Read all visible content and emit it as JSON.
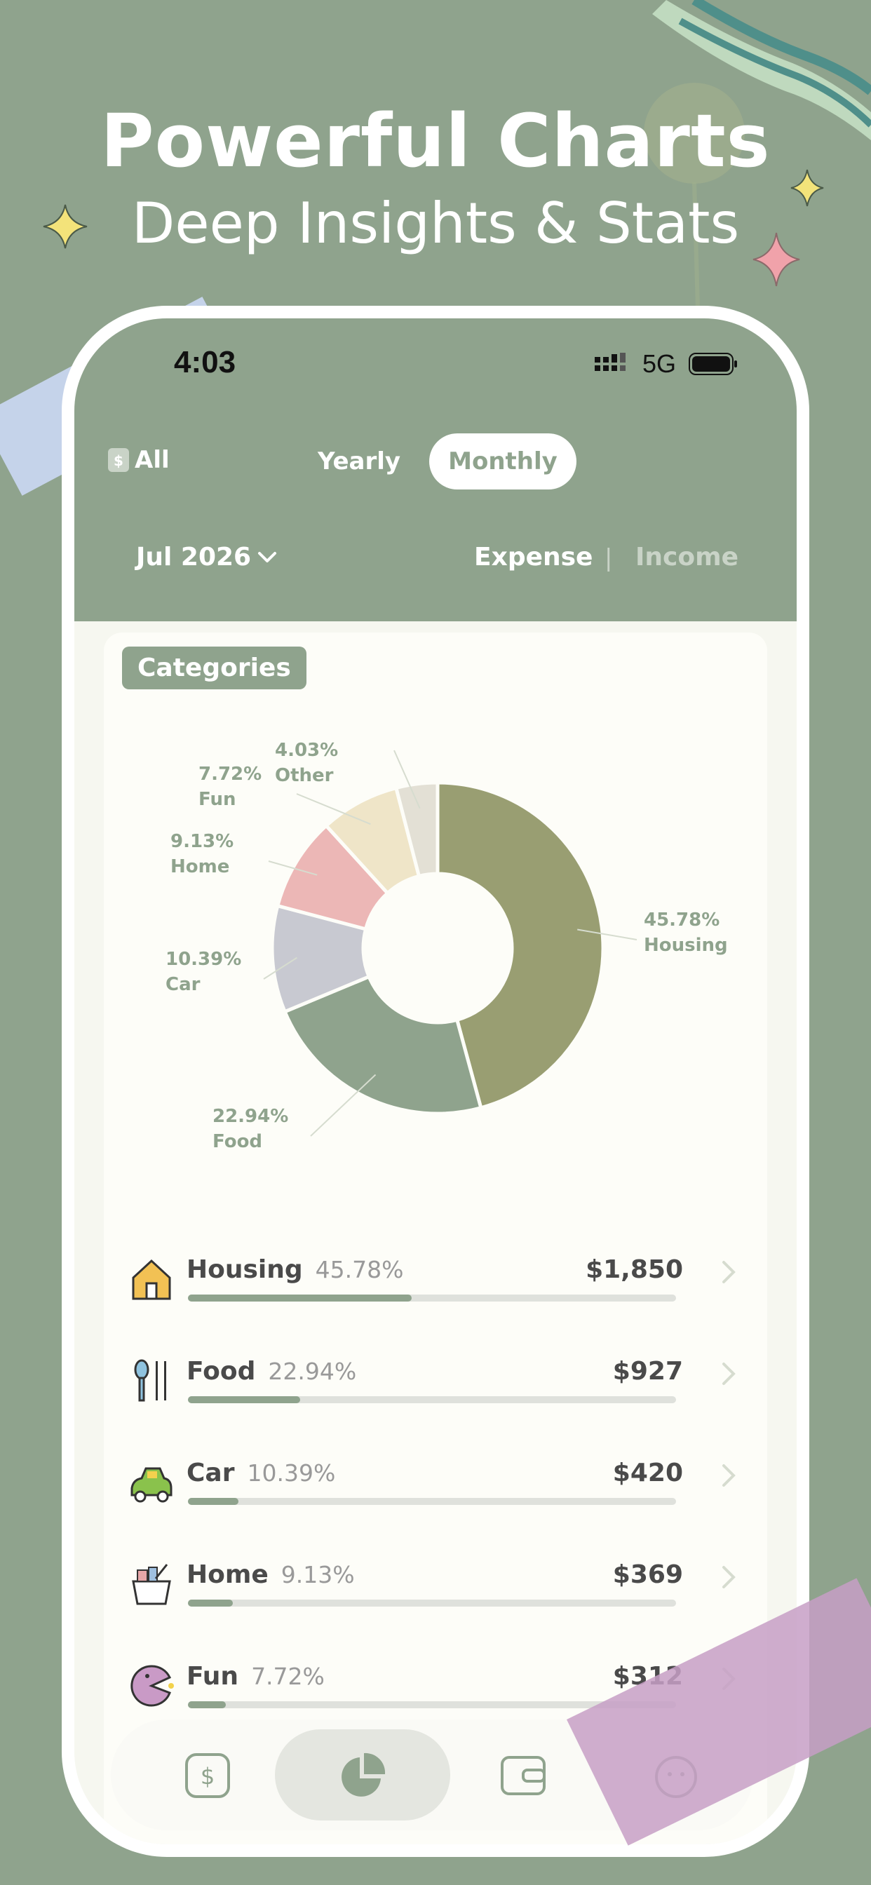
{
  "hero": {
    "title": "Powerful Charts",
    "subtitle": "Deep Insights & Stats"
  },
  "status_bar": {
    "time": "4:03",
    "network": "5G"
  },
  "header": {
    "account_filter": "All",
    "account_icon_glyph": "$",
    "period_tabs": [
      {
        "label": "Yearly",
        "selected": false
      },
      {
        "label": "Monthly",
        "selected": true
      }
    ],
    "month_selector": "Jul 2026",
    "type_tabs": [
      {
        "label": "Expense",
        "selected": true
      },
      {
        "label": "Income",
        "selected": false
      }
    ],
    "separator": "|"
  },
  "section_title": "Categories",
  "chart_data": {
    "type": "pie",
    "donut": true,
    "slices": [
      {
        "label": "Housing",
        "percent": 45.78,
        "pct_text": "45.78%",
        "color": "#999e72"
      },
      {
        "label": "Food",
        "percent": 22.94,
        "pct_text": "22.94%",
        "color": "#8fa38d"
      },
      {
        "label": "Car",
        "percent": 10.39,
        "pct_text": "10.39%",
        "color": "#c8c9d1"
      },
      {
        "label": "Home",
        "percent": 9.13,
        "pct_text": "9.13%",
        "color": "#ecb7b6"
      },
      {
        "label": "Fun",
        "percent": 7.72,
        "pct_text": "7.72%",
        "color": "#efe5c8"
      },
      {
        "label": "Other",
        "percent": 4.03,
        "pct_text": "4.03%",
        "color": "#e3e0d5"
      }
    ]
  },
  "categories": [
    {
      "name": "Housing",
      "percent": "45.78%",
      "amount": "$1,850",
      "fraction": 0.4578
    },
    {
      "name": "Food",
      "percent": "22.94%",
      "amount": "$927",
      "fraction": 0.2294
    },
    {
      "name": "Car",
      "percent": "10.39%",
      "amount": "$420",
      "fraction": 0.1039
    },
    {
      "name": "Home",
      "percent": "9.13%",
      "amount": "$369",
      "fraction": 0.0913
    },
    {
      "name": "Fun",
      "percent": "7.72%",
      "amount": "$312",
      "fraction": 0.0772
    }
  ],
  "tab_bar": {
    "items": [
      {
        "icon": "dollar-icon",
        "glyph": "$"
      },
      {
        "icon": "pie-chart-icon"
      },
      {
        "icon": "wallet-icon"
      },
      {
        "icon": "smile-icon"
      }
    ]
  },
  "colors": {
    "accent": "#8fa38d",
    "background": "#8fa38d",
    "card": "#fdfdf8"
  }
}
